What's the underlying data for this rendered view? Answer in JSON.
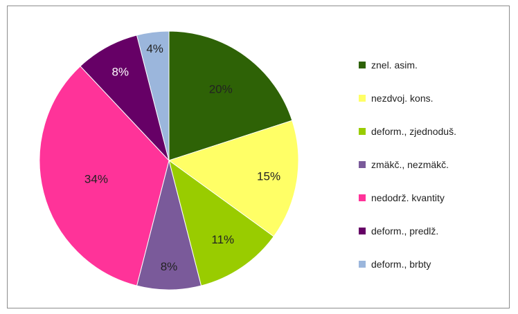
{
  "chart_data": {
    "type": "pie",
    "categories": [
      "znel. asim.",
      "nezdvoj. kons.",
      "deform., zjednoduš.",
      "zmäkč., nezmäkč.",
      "nedodrž. kvantity",
      "deform., predlž.",
      "deform., brbty"
    ],
    "values": [
      20,
      15,
      11,
      8,
      34,
      8,
      4
    ],
    "data_labels": [
      "20%",
      "15%",
      "11%",
      "8%",
      "34%",
      "8%",
      "4%"
    ],
    "colors": [
      "#2e6206",
      "#ffff66",
      "#99cc00",
      "#7a5a9a",
      "#ff3399",
      "#660066",
      "#9bb6dc"
    ],
    "label_colors": [
      "#222222",
      "#222222",
      "#222222",
      "#222222",
      "#222222",
      "#ffffff",
      "#222222"
    ],
    "start_angle_deg": 0,
    "direction": "clockwise",
    "legend_position": "right",
    "title": ""
  }
}
